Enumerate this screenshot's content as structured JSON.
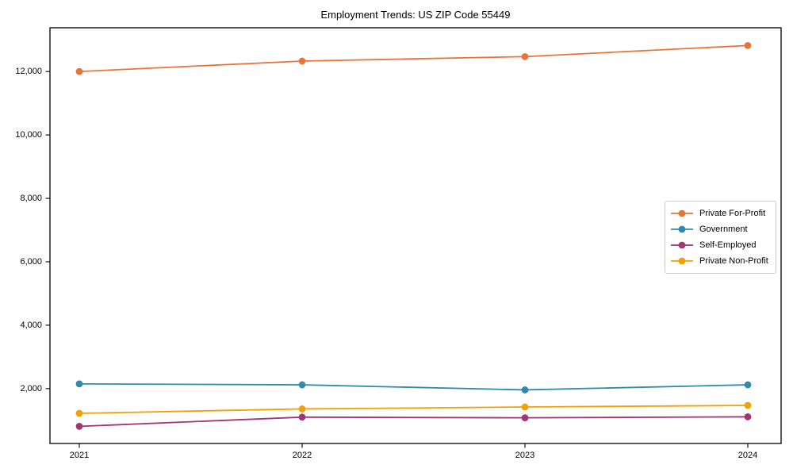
{
  "figure": {
    "background": "#ffffff",
    "frame_color": "#000000"
  },
  "chart_data": {
    "type": "line",
    "title": "Employment Trends: US ZIP Code 55449",
    "xlabel": "",
    "ylabel": "",
    "x": [
      "2021",
      "2022",
      "2023",
      "2024"
    ],
    "series": [
      {
        "name": "Private For-Profit",
        "color": "#e8743b",
        "values": [
          12000,
          12330,
          12470,
          12820
        ]
      },
      {
        "name": "Government",
        "color": "#2e8bab",
        "values": [
          2150,
          2120,
          1960,
          2120
        ]
      },
      {
        "name": "Self-Employed",
        "color": "#a23577",
        "values": [
          810,
          1100,
          1080,
          1110
        ]
      },
      {
        "name": "Private Non-Profit",
        "color": "#f2a104",
        "values": [
          1220,
          1360,
          1420,
          1470
        ]
      }
    ],
    "y_ticks": [
      2000,
      4000,
      6000,
      8000,
      10000,
      12000
    ],
    "y_tick_labels": [
      "2,000",
      "4,000",
      "6,000",
      "8,000",
      "10,000",
      "12,000"
    ],
    "ylim": [
      270,
      13380
    ],
    "grid": false,
    "legend_position": "center-right",
    "marker": "circle"
  }
}
